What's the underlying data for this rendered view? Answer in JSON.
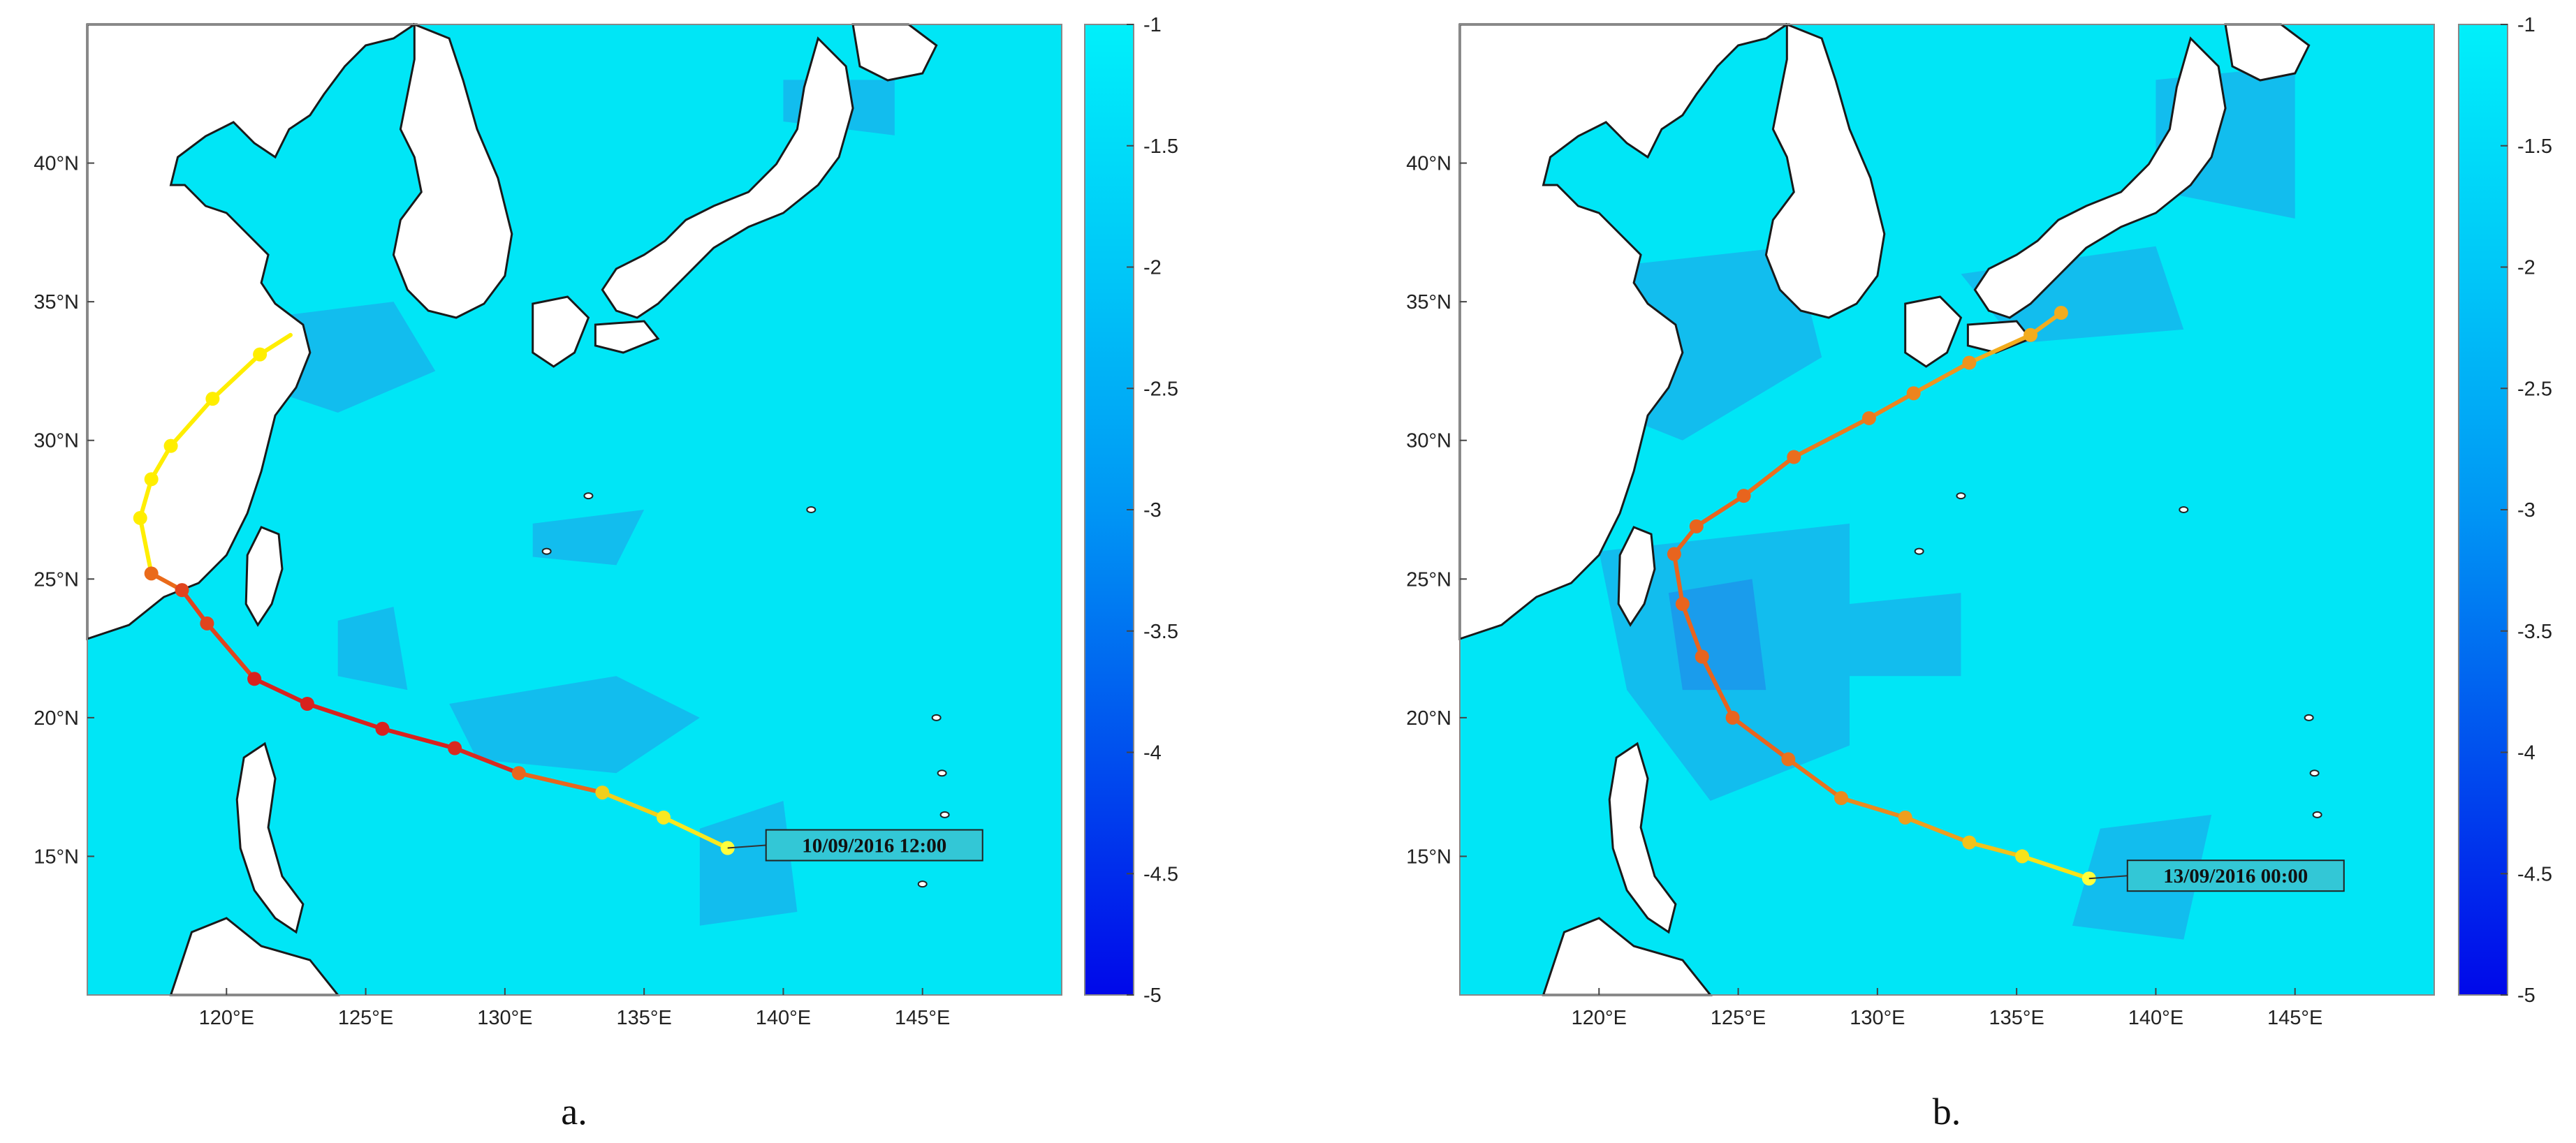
{
  "panels": [
    {
      "caption": "a.",
      "lat_ticks": [
        "15°N",
        "20°N",
        "25°N",
        "30°N",
        "35°N",
        "40°N"
      ],
      "lon_ticks": [
        "120°E",
        "125°E",
        "130°E",
        "135°E",
        "140°E",
        "145°E"
      ],
      "colorbar": {
        "min": -5,
        "max": -1,
        "labels": [
          "-1",
          "-1.5",
          "-2",
          "-2.5",
          "-3",
          "-3.5",
          "-4",
          "-4.5",
          "-5"
        ]
      },
      "annotation": "10/09/2016 12:00",
      "track": [
        {
          "lon": 138.0,
          "lat": 15.3,
          "c": "#ffff3c"
        },
        {
          "lon": 135.7,
          "lat": 16.4,
          "c": "#f9e820"
        },
        {
          "lon": 133.5,
          "lat": 17.3,
          "c": "#f2cf1a"
        },
        {
          "lon": 130.5,
          "lat": 18.0,
          "c": "#e8661e"
        },
        {
          "lon": 128.2,
          "lat": 18.9,
          "c": "#d92a20"
        },
        {
          "lon": 125.6,
          "lat": 19.6,
          "c": "#d8221e"
        },
        {
          "lon": 122.9,
          "lat": 20.5,
          "c": "#d8221e"
        },
        {
          "lon": 121.0,
          "lat": 21.4,
          "c": "#d8221e"
        },
        {
          "lon": 119.3,
          "lat": 23.4,
          "c": "#e0441e"
        },
        {
          "lon": 118.4,
          "lat": 24.6,
          "c": "#e0441e"
        },
        {
          "lon": 117.3,
          "lat": 25.2,
          "c": "#ea6a1a"
        },
        {
          "lon": 116.9,
          "lat": 27.2,
          "c": "#ffee00"
        },
        {
          "lon": 117.3,
          "lat": 28.6,
          "c": "#ffee00"
        },
        {
          "lon": 118.0,
          "lat": 29.8,
          "c": "#ffee00"
        },
        {
          "lon": 119.5,
          "lat": 31.5,
          "c": "#ffee00"
        },
        {
          "lon": 121.2,
          "lat": 33.1,
          "c": "#ffee00"
        },
        {
          "lon": 122.3,
          "lat": 33.8,
          "c": "#ffee00"
        }
      ]
    },
    {
      "caption": "b.",
      "lat_ticks": [
        "15°N",
        "20°N",
        "25°N",
        "30°N",
        "35°N",
        "40°N"
      ],
      "lon_ticks": [
        "120°E",
        "125°E",
        "130°E",
        "135°E",
        "140°E",
        "145°E"
      ],
      "colorbar": {
        "min": -5,
        "max": -1,
        "labels": [
          "-1",
          "-1.5",
          "-2",
          "-2.5",
          "-3",
          "-3.5",
          "-4",
          "-4.5",
          "-5"
        ]
      },
      "annotation": "13/09/2016 00:00",
      "track": [
        {
          "lon": 137.6,
          "lat": 14.2,
          "c": "#ffff3c"
        },
        {
          "lon": 135.2,
          "lat": 15.0,
          "c": "#f7e21a"
        },
        {
          "lon": 133.3,
          "lat": 15.5,
          "c": "#f2c21a"
        },
        {
          "lon": 131.0,
          "lat": 16.4,
          "c": "#ee9e1e"
        },
        {
          "lon": 128.7,
          "lat": 17.1,
          "c": "#ea8a1e"
        },
        {
          "lon": 126.8,
          "lat": 18.5,
          "c": "#e8721e"
        },
        {
          "lon": 124.8,
          "lat": 20.0,
          "c": "#e8641e"
        },
        {
          "lon": 123.7,
          "lat": 22.2,
          "c": "#e8641e"
        },
        {
          "lon": 123.0,
          "lat": 24.1,
          "c": "#e8641e"
        },
        {
          "lon": 122.7,
          "lat": 25.9,
          "c": "#e8641e"
        },
        {
          "lon": 123.5,
          "lat": 26.9,
          "c": "#e8641e"
        },
        {
          "lon": 125.2,
          "lat": 28.0,
          "c": "#e8641e"
        },
        {
          "lon": 127.0,
          "lat": 29.4,
          "c": "#ea6e1e"
        },
        {
          "lon": 129.7,
          "lat": 30.8,
          "c": "#ea7a1e"
        },
        {
          "lon": 131.3,
          "lat": 31.7,
          "c": "#ec841e"
        },
        {
          "lon": 133.3,
          "lat": 32.8,
          "c": "#ee941e"
        },
        {
          "lon": 135.5,
          "lat": 33.8,
          "c": "#f2ac1e"
        },
        {
          "lon": 136.6,
          "lat": 34.6,
          "c": "#f2ac1e"
        }
      ]
    }
  ],
  "colors": {
    "ocean": "#00e6f6",
    "land": "#ffffff",
    "coast": "#1a1a1a",
    "dark_patch": "#12bdee",
    "darker_patch": "#1a9cec"
  }
}
